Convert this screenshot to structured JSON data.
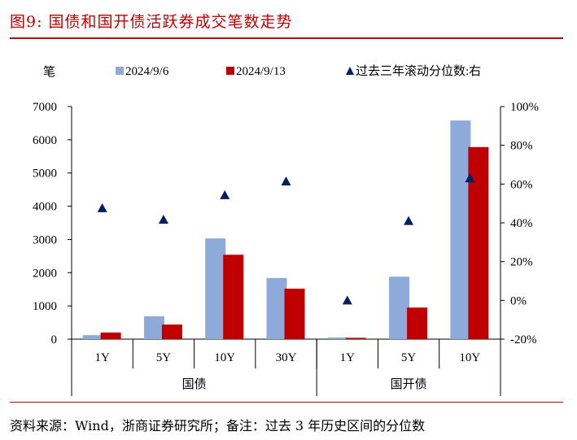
{
  "title": "图9:  国债和国开债活跃券成交笔数走势",
  "source": "资料来源：Wind，浙商证券研究所；备注：过去 3 年历史区间的分位数",
  "chart_data": {
    "type": "bar",
    "ylabel": "笔",
    "ylim": [
      0,
      7000
    ],
    "yticks": [
      "0",
      "1000",
      "2000",
      "3000",
      "4000",
      "5000",
      "6000",
      "7000"
    ],
    "y2lim": [
      -20,
      100
    ],
    "y2ticks": [
      "-20%",
      "0%",
      "20%",
      "40%",
      "60%",
      "80%",
      "100%"
    ],
    "categories": [
      "1Y",
      "5Y",
      "10Y",
      "30Y",
      "1Y",
      "5Y",
      "10Y"
    ],
    "groups": [
      {
        "label": "国债",
        "count": 4
      },
      {
        "label": "国开债",
        "count": 3
      }
    ],
    "series": [
      {
        "name": "2024/9/6",
        "type": "bar",
        "axis": "left",
        "color": "#8eaadb",
        "values": [
          120,
          690,
          3030,
          1840,
          50,
          1880,
          6580
        ]
      },
      {
        "name": "2024/9/13",
        "type": "bar",
        "axis": "left",
        "color": "#c00000",
        "values": [
          200,
          440,
          2540,
          1520,
          40,
          950,
          5780
        ]
      },
      {
        "name": "过去三年滚动分位数:右",
        "type": "scatter",
        "marker": "triangle",
        "axis": "right",
        "color": "#002060",
        "values": [
          47.6,
          41.7,
          54.3,
          61.4,
          0,
          41,
          63
        ]
      }
    ],
    "legend": "top",
    "grid": false
  }
}
